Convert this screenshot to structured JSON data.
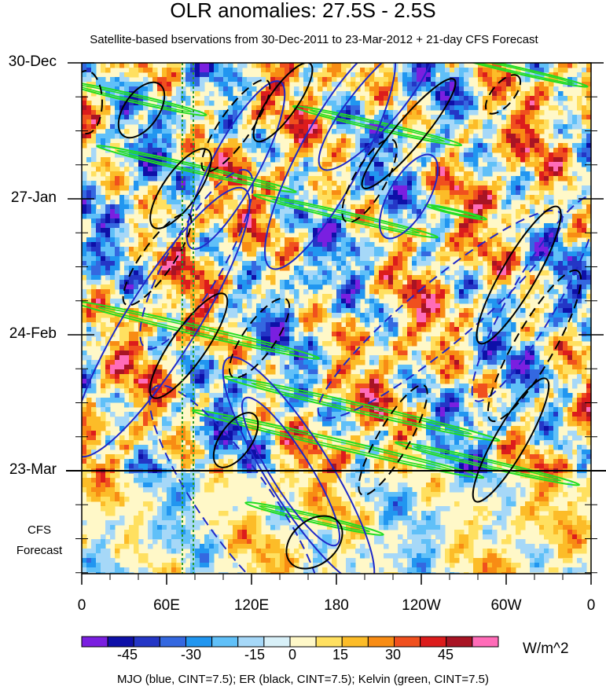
{
  "chart_data": {
    "type": "heatmap",
    "title": "OLR anomalies: 27.5S - 2.5S",
    "subtitle": "Satellite-based bservations from 30-Dec-2011 to 23-Mar-2012 + 21-day CFS Forecast",
    "x_ticks": [
      "0",
      "60E",
      "120E",
      "180",
      "120W",
      "60W",
      "0"
    ],
    "y_ticks": [
      "30-Dec",
      "27-Jan",
      "24-Feb",
      "23-Mar"
    ],
    "forecast_label": [
      "CFS",
      "Forecast"
    ],
    "units": "W/m^2",
    "colorbar": {
      "labels": [
        "-45",
        "-30",
        "-15",
        "0",
        "15",
        "30",
        "45"
      ],
      "colors": [
        "#7a1fe0",
        "#0e10a8",
        "#2436c6",
        "#3468e0",
        "#2196f0",
        "#60c0f8",
        "#a6d8f8",
        "#d8f0f8",
        "#fff8c8",
        "#ffe060",
        "#fcbc28",
        "#f88c14",
        "#f0501e",
        "#dc1c1c",
        "#a81424",
        "#ff6cb8"
      ]
    },
    "contour_legend": "MJO (blue, CINT=7.5); ER (black, CINT=7.5); Kelvin (green, CINT=7.5)"
  },
  "series_colors": {
    "mjo": "#1e28c8",
    "er": "#000000",
    "kelvin": "#22dd22",
    "forecast_line": "#000000"
  }
}
